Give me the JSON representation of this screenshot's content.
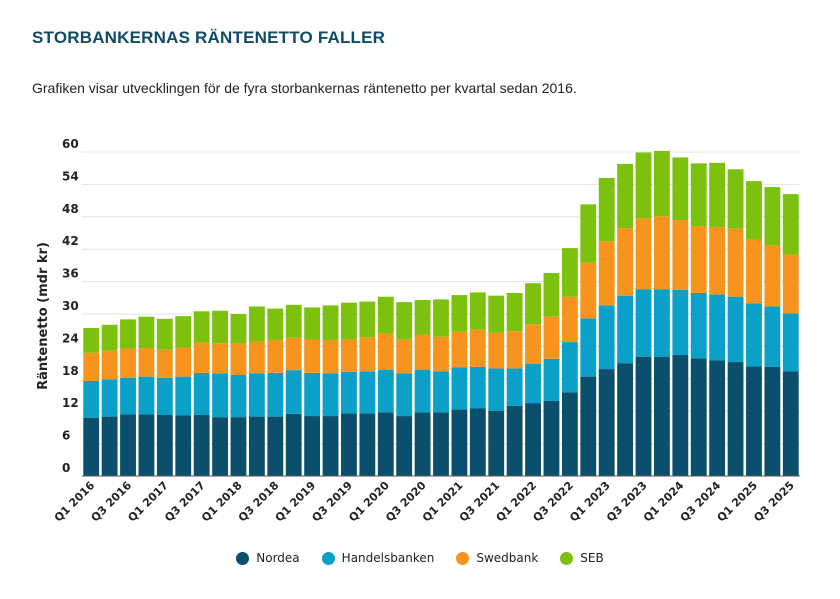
{
  "header": {
    "title": "STORBANKERNAS RÄNTENETTO FALLER",
    "subtitle": "Grafiken visar utvecklingen för de fyra storbankernas räntenetto per kvartal sedan 2016."
  },
  "chart_data": {
    "type": "bar",
    "stacked": true,
    "ylabel": "Räntenetto (mdr kr)",
    "xlabel": "",
    "ylim": [
      0,
      60
    ],
    "yticks": [
      0,
      6,
      12,
      18,
      24,
      30,
      36,
      42,
      48,
      54,
      60
    ],
    "grid": true,
    "legend_position": "bottom-center",
    "categories": [
      "Q1 2016",
      "Q2 2016",
      "Q3 2016",
      "Q4 2016",
      "Q1 2017",
      "Q2 2017",
      "Q3 2017",
      "Q4 2017",
      "Q1 2018",
      "Q2 2018",
      "Q3 2018",
      "Q4 2018",
      "Q1 2019",
      "Q2 2019",
      "Q3 2019",
      "Q4 2019",
      "Q1 2020",
      "Q2 2020",
      "Q3 2020",
      "Q4 2020",
      "Q1 2021",
      "Q2 2021",
      "Q3 2021",
      "Q4 2021",
      "Q1 2022",
      "Q2 2022",
      "Q3 2022",
      "Q4 2022",
      "Q1 2023",
      "Q2 2023",
      "Q3 2023",
      "Q4 2023",
      "Q1 2024",
      "Q2 2024",
      "Q3 2024",
      "Q4 2024",
      "Q1 2025",
      "Q2 2025",
      "Q3 2025"
    ],
    "tick_labels": [
      "Q1 2016",
      "Q3 2016",
      "Q1 2017",
      "Q3 2017",
      "Q1 2018",
      "Q3 2018",
      "Q1 2019",
      "Q3 2019",
      "Q1 2020",
      "Q3 2020",
      "Q1 2021",
      "Q3 2021",
      "Q1 2022",
      "Q3 2022",
      "Q1 2023",
      "Q3 2023",
      "Q1 2024",
      "Q3 2024",
      "Q1 2025",
      "Q3 2025"
    ],
    "series": [
      {
        "name": "Nordea",
        "color": "#0b4f6c",
        "values": [
          10.8,
          11.0,
          11.4,
          11.4,
          11.3,
          11.2,
          11.3,
          10.9,
          10.9,
          11.0,
          11.0,
          11.5,
          11.1,
          11.1,
          11.6,
          11.6,
          11.8,
          11.1,
          11.8,
          11.8,
          12.3,
          12.5,
          12.1,
          13.0,
          13.5,
          13.9,
          15.5,
          18.4,
          19.8,
          20.9,
          22.1,
          22.1,
          22.4,
          21.8,
          21.4,
          21.1,
          20.3,
          20.2,
          19.4
        ]
      },
      {
        "name": "Handelsbanken",
        "color": "#0aa0c8",
        "values": [
          6.8,
          6.9,
          6.8,
          7.0,
          6.9,
          7.2,
          7.8,
          8.1,
          7.8,
          8.0,
          8.1,
          8.1,
          8.0,
          7.9,
          7.7,
          7.8,
          7.9,
          7.9,
          7.9,
          7.6,
          7.8,
          7.7,
          7.8,
          6.9,
          7.3,
          7.8,
          9.3,
          10.8,
          11.8,
          12.5,
          12.5,
          12.5,
          12.1,
          12.1,
          12.2,
          12.1,
          11.7,
          11.2,
          10.7
        ]
      },
      {
        "name": "Swedbank",
        "color": "#f7941d",
        "values": [
          5.2,
          5.3,
          5.4,
          5.3,
          5.2,
          5.4,
          5.6,
          5.6,
          5.8,
          5.9,
          6.1,
          6.0,
          6.1,
          6.2,
          6.0,
          6.3,
          6.7,
          6.3,
          6.5,
          6.4,
          6.6,
          6.9,
          6.6,
          6.9,
          7.3,
          7.8,
          8.4,
          10.3,
          11.9,
          12.5,
          13.1,
          13.5,
          12.9,
          12.4,
          12.5,
          12.6,
          11.8,
          11.3,
          10.9
        ]
      },
      {
        "name": "SEB",
        "color": "#7bc10e",
        "values": [
          4.6,
          4.8,
          5.4,
          5.8,
          5.7,
          5.8,
          5.8,
          6.0,
          5.5,
          6.5,
          5.8,
          6.1,
          6.0,
          6.4,
          6.8,
          6.6,
          6.8,
          6.9,
          6.4,
          6.9,
          6.8,
          6.9,
          6.9,
          7.1,
          7.6,
          8.1,
          9.0,
          10.8,
          11.7,
          11.9,
          12.2,
          12.1,
          11.6,
          11.6,
          11.9,
          11.0,
          10.8,
          10.8,
          11.2
        ]
      }
    ]
  }
}
